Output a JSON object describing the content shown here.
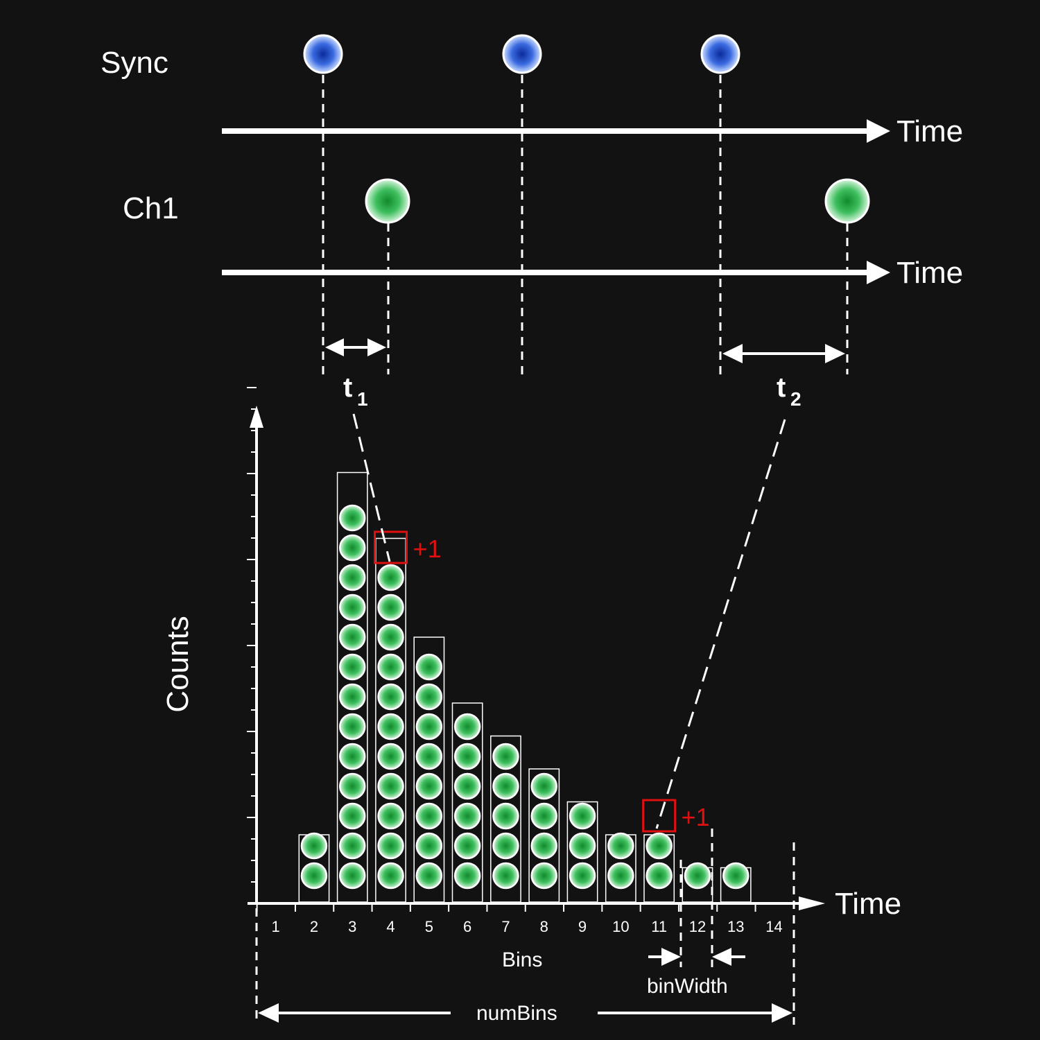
{
  "labels": {
    "sync": "Sync",
    "ch1": "Ch1",
    "time_top": "Time",
    "time_mid": "Time",
    "time_hist": "Time",
    "t1": "t",
    "t1_sub": "1",
    "t2": "t",
    "t2_sub": "2",
    "counts": "Counts",
    "bins": "Bins",
    "bin_width": "binWidth",
    "num_bins": "numBins",
    "plus_one_a": "+1",
    "plus_one_b": "+1"
  },
  "colors": {
    "background": "#121212",
    "sync_marker": "#1f4fd6",
    "photon": "#2fa84a",
    "highlight": "#e01010",
    "line": "#ffffff"
  },
  "chart_data": {
    "type": "bar",
    "categories": [
      "1",
      "2",
      "3",
      "4",
      "5",
      "6",
      "7",
      "8",
      "9",
      "10",
      "11",
      "12",
      "13",
      "14"
    ],
    "values": [
      0,
      2,
      13,
      11,
      8,
      6,
      5,
      4,
      3,
      2,
      2,
      1,
      1,
      0
    ],
    "xlabel": "Time",
    "ylabel": "Counts",
    "highlighted_counts": [
      {
        "bin": "4",
        "count_index": 11,
        "label": "+1"
      },
      {
        "bin": "11",
        "count_index": 2,
        "label": "+1"
      }
    ]
  }
}
